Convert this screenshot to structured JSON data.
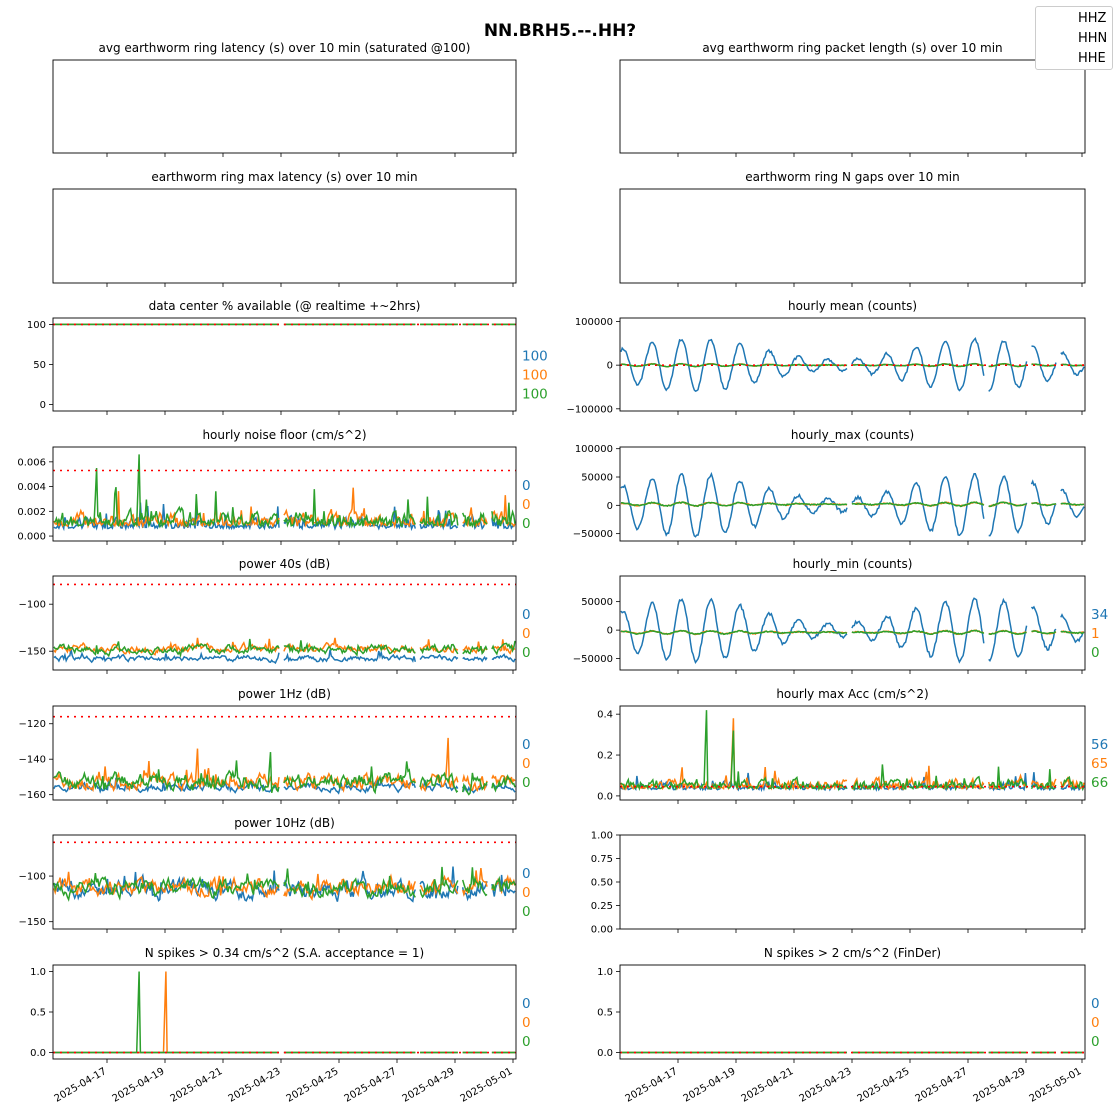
{
  "suptitle": "NN.BRH5.--.HH?",
  "legend": {
    "items": [
      "HHZ",
      "HHN",
      "HHE"
    ],
    "placement": "top-right"
  },
  "colors": {
    "HHZ": "#1f77b4",
    "HHN": "#ff7f0e",
    "HHE": "#2ca02c",
    "threshold": "#ff0000"
  },
  "date_ticks": [
    "2025-04-17",
    "2025-04-19",
    "2025-04-21",
    "2025-04-23",
    "2025-04-25",
    "2025-04-27",
    "2025-04-29",
    "2025-05-01"
  ],
  "chart_data": [
    {
      "id": "latency",
      "type": "line",
      "title": "avg earthworm ring latency (s)   over 10 min (saturated @100)",
      "empty": true,
      "side": [],
      "yticks": []
    },
    {
      "id": "packet",
      "type": "line",
      "title": "avg earthworm ring packet length (s)   over 10 min",
      "empty": true,
      "side": [],
      "yticks": []
    },
    {
      "id": "maxlat",
      "type": "line",
      "title": "earthworm ring max latency (s)   over 10 min",
      "empty": true,
      "side": [],
      "yticks": []
    },
    {
      "id": "ngaps",
      "type": "line",
      "title": "earthworm ring N gaps   over 10 min",
      "empty": true,
      "side": [],
      "yticks": []
    },
    {
      "id": "avail",
      "type": "line",
      "title": "data center % available (@ realtime +~2hrs)",
      "ylim": [
        -8,
        108
      ],
      "yticks": [
        {
          "v": 0,
          "t": "0"
        },
        {
          "v": 50,
          "t": "50"
        },
        {
          "v": 100,
          "t": "100"
        }
      ],
      "threshold": 100,
      "style": "flat",
      "base": [
        100,
        100,
        100
      ],
      "noise": [
        0,
        0,
        0
      ],
      "side": [
        "100",
        "100",
        "100"
      ]
    },
    {
      "id": "mean",
      "type": "line",
      "title": "hourly mean (counts)",
      "ylim": [
        -105000,
        108000
      ],
      "yticks": [
        {
          "v": -100000,
          "t": "−100000"
        },
        {
          "v": 0,
          "t": "0"
        },
        {
          "v": 100000,
          "t": "100000"
        }
      ],
      "threshold": 0,
      "style": "diurnal",
      "base": [
        0,
        0,
        0
      ],
      "amp": [
        60000,
        3000,
        3000
      ],
      "noise": [
        6000,
        1500,
        1500
      ],
      "side": []
    },
    {
      "id": "noisefloor",
      "type": "line",
      "title": "hourly noise floor (cm/s^2)",
      "ylim": [
        -0.0004,
        0.0072
      ],
      "yticks": [
        {
          "v": 0,
          "t": "0.000"
        },
        {
          "v": 0.002,
          "t": "0.002"
        },
        {
          "v": 0.004,
          "t": "0.004"
        },
        {
          "v": 0.006,
          "t": "0.006"
        }
      ],
      "threshold": 0.0053,
      "style": "spiky",
      "base": [
        0.0006,
        0.0008,
        0.0008
      ],
      "noise": [
        0.0009,
        0.0012,
        0.0013
      ],
      "peaks": [
        {
          "s": 2,
          "i": 70,
          "v": 0.0066
        },
        {
          "s": 2,
          "i": 35,
          "v": 0.0055
        }
      ],
      "side": [
        "0",
        "0",
        "0"
      ]
    },
    {
      "id": "hmax",
      "type": "line",
      "title": "hourly_max (counts)",
      "ylim": [
        -63000,
        103000
      ],
      "yticks": [
        {
          "v": -50000,
          "t": "−50000"
        },
        {
          "v": 0,
          "t": "0"
        },
        {
          "v": 50000,
          "t": "50000"
        },
        {
          "v": 100000,
          "t": "100000"
        }
      ],
      "threshold": null,
      "style": "diurnal",
      "base": [
        0,
        2000,
        2000
      ],
      "amp": [
        55000,
        3000,
        3000
      ],
      "noise": [
        6000,
        2000,
        2000
      ],
      "side": []
    },
    {
      "id": "p40",
      "type": "line",
      "title": "power 40s (dB)",
      "ylim": [
        -170,
        -70
      ],
      "yticks": [
        {
          "v": -150,
          "t": "−150"
        },
        {
          "v": -100,
          "t": "−100"
        }
      ],
      "threshold": -79,
      "style": "noisy",
      "base": [
        -158,
        -147,
        -148
      ],
      "noise": [
        3,
        4,
        4
      ],
      "side": [
        "0",
        "0",
        "0"
      ]
    },
    {
      "id": "hmin",
      "type": "line",
      "title": "hourly_min (counts)",
      "ylim": [
        -70000,
        95000
      ],
      "yticks": [
        {
          "v": -50000,
          "t": "−50000"
        },
        {
          "v": 0,
          "t": "0"
        },
        {
          "v": 50000,
          "t": "50000"
        }
      ],
      "threshold": null,
      "style": "diurnal",
      "base": [
        0,
        -4000,
        -4000
      ],
      "amp": [
        55000,
        3000,
        3000
      ],
      "noise": [
        6000,
        2000,
        2000
      ],
      "side": [
        "34",
        "1",
        "0"
      ]
    },
    {
      "id": "p1hz",
      "type": "line",
      "title": "power 1Hz (dB)",
      "ylim": [
        -163,
        -110
      ],
      "yticks": [
        {
          "v": -160,
          "t": "−160"
        },
        {
          "v": -140,
          "t": "−140"
        },
        {
          "v": -120,
          "t": "−120"
        }
      ],
      "threshold": -116,
      "style": "noisy",
      "base": [
        -156,
        -153,
        -153
      ],
      "noise": [
        2,
        4,
        4
      ],
      "peaks": [
        {
          "s": 1,
          "i": 118,
          "v": -134
        },
        {
          "s": 1,
          "i": 324,
          "v": -128
        },
        {
          "s": 2,
          "i": 178,
          "v": -136
        }
      ],
      "side": [
        "0",
        "0",
        "0"
      ]
    },
    {
      "id": "maxacc",
      "type": "line",
      "title": "hourly max Acc (cm/s^2)",
      "ylim": [
        -0.02,
        0.44
      ],
      "yticks": [
        {
          "v": 0,
          "t": "0.0"
        },
        {
          "v": 0.2,
          "t": "0.2"
        },
        {
          "v": 0.4,
          "t": "0.4"
        }
      ],
      "threshold": 0.045,
      "style": "spiky",
      "base": [
        0.03,
        0.035,
        0.035
      ],
      "noise": [
        0.04,
        0.05,
        0.05
      ],
      "peaks": [
        {
          "s": 2,
          "i": 70,
          "v": 0.42
        },
        {
          "s": 1,
          "i": 92,
          "v": 0.38
        },
        {
          "s": 2,
          "i": 92,
          "v": 0.32
        },
        {
          "s": 1,
          "i": 50,
          "v": 0.14
        }
      ],
      "side": [
        "56",
        "65",
        "66"
      ]
    },
    {
      "id": "p10hz",
      "type": "line",
      "title": "power 10Hz (dB)",
      "ylim": [
        -158,
        -55
      ],
      "yticks": [
        {
          "v": -150,
          "t": "−150"
        },
        {
          "v": -100,
          "t": "−100"
        }
      ],
      "threshold": -63,
      "style": "noisy",
      "base": [
        -115,
        -112,
        -112
      ],
      "noise": [
        9,
        8,
        8
      ],
      "side": [
        "0",
        "0",
        "0"
      ]
    },
    {
      "id": "blank",
      "type": "line",
      "title": "",
      "ylim": [
        0,
        1
      ],
      "yticks": [
        {
          "v": 0,
          "t": "0.00"
        },
        {
          "v": 0.25,
          "t": "0.25"
        },
        {
          "v": 0.5,
          "t": "0.50"
        },
        {
          "v": 0.75,
          "t": "0.75"
        },
        {
          "v": 1,
          "t": "1.00"
        }
      ],
      "threshold": null,
      "style": "none",
      "side": []
    },
    {
      "id": "spikes034",
      "type": "line",
      "title": "N spikes > 0.34 cm/s^2 (S.A. acceptance = 1)",
      "ylim": [
        -0.08,
        1.08
      ],
      "yticks": [
        {
          "v": 0,
          "t": "0.0"
        },
        {
          "v": 0.5,
          "t": "0.5"
        },
        {
          "v": 1,
          "t": "1.0"
        }
      ],
      "threshold": 0,
      "style": "flat",
      "base": [
        0,
        0,
        0
      ],
      "noise": [
        0,
        0,
        0
      ],
      "peaks": [
        {
          "s": 2,
          "i": 70,
          "v": 1
        },
        {
          "s": 1,
          "i": 92,
          "v": 1
        }
      ],
      "side": [
        "0",
        "0",
        "0"
      ]
    },
    {
      "id": "spikes2",
      "type": "line",
      "title": "N spikes > 2 cm/s^2 (FinDer)",
      "ylim": [
        -0.08,
        1.08
      ],
      "yticks": [
        {
          "v": 0,
          "t": "0.0"
        },
        {
          "v": 0.5,
          "t": "0.5"
        },
        {
          "v": 1,
          "t": "1.0"
        }
      ],
      "threshold": 0,
      "style": "flat",
      "base": [
        0,
        0,
        0
      ],
      "noise": [
        0,
        0,
        0
      ],
      "side": [
        "0",
        "0",
        "0"
      ]
    }
  ]
}
